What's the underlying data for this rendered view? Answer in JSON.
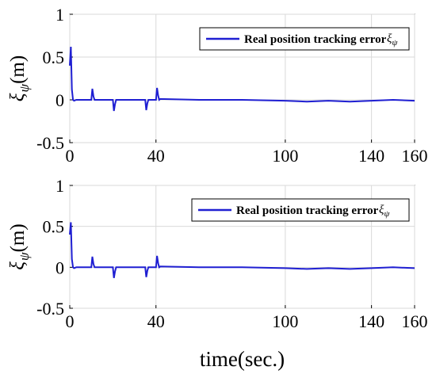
{
  "chart_data": [
    {
      "type": "line",
      "xlim": [
        0,
        160
      ],
      "ylim": [
        -0.5,
        1
      ],
      "xticks": [
        "0",
        "40",
        "100",
        "140",
        "160"
      ],
      "xtick_values": [
        0,
        40,
        100,
        140,
        160
      ],
      "yticks": [
        "1",
        "0.5",
        "0",
        "-0.5"
      ],
      "ytick_values": [
        1,
        0.5,
        0,
        -0.5
      ],
      "ylabel": "ξ",
      "ylabel_sub": "ψ",
      "ylabel_unit": "(m)",
      "xlabel": "",
      "legend": {
        "text": "Real position tracking error",
        "symbol": "ξ",
        "symbol_sub": "ψ",
        "position": "top-right"
      },
      "grid": true,
      "color": "#1f1fd2",
      "series": [
        {
          "name": "Real position tracking error ξψ",
          "x": [
            0,
            0.5,
            1,
            1.5,
            2,
            3,
            10,
            10.5,
            11,
            11.5,
            12,
            20,
            20.5,
            21,
            21.5,
            22,
            35,
            35.5,
            36,
            36.5,
            37,
            40,
            40.5,
            41,
            41.5,
            42,
            60,
            80,
            100,
            110,
            120,
            130,
            140,
            150,
            160
          ],
          "y": [
            0.4,
            0.62,
            0.12,
            0.0,
            -0.01,
            0.0,
            0.0,
            0.13,
            0.04,
            0.0,
            0.0,
            0.0,
            -0.13,
            -0.05,
            0.0,
            0.0,
            0.0,
            -0.12,
            -0.04,
            0.0,
            0.0,
            0.0,
            0.14,
            0.05,
            0.0,
            0.01,
            0.0,
            0.0,
            -0.01,
            -0.02,
            -0.01,
            -0.02,
            -0.01,
            0.0,
            -0.01
          ]
        }
      ]
    },
    {
      "type": "line",
      "xlim": [
        0,
        160
      ],
      "ylim": [
        -0.5,
        1
      ],
      "xticks": [
        "0",
        "40",
        "100",
        "140",
        "160"
      ],
      "xtick_values": [
        0,
        40,
        100,
        140,
        160
      ],
      "yticks": [
        "1",
        "0.5",
        "0",
        "-0.5"
      ],
      "ytick_values": [
        1,
        0.5,
        0,
        -0.5
      ],
      "ylabel": "ξ",
      "ylabel_sub": "ψ",
      "ylabel_unit": "(m)",
      "xlabel": "time(sec.)",
      "legend": {
        "text": "Real position tracking error",
        "symbol": "ξ",
        "symbol_sub": "ψ",
        "position": "top-right"
      },
      "grid": true,
      "color": "#1f1fd2",
      "series": [
        {
          "name": "Real position tracking error ξψ",
          "x": [
            0,
            0.5,
            1,
            1.5,
            2,
            3,
            10,
            10.5,
            11,
            11.5,
            12,
            20,
            20.5,
            21,
            21.5,
            22,
            35,
            35.5,
            36,
            36.5,
            37,
            40,
            40.5,
            41,
            41.5,
            42,
            60,
            80,
            100,
            110,
            120,
            130,
            140,
            150,
            160
          ],
          "y": [
            0.4,
            0.55,
            0.1,
            0.0,
            -0.01,
            0.0,
            0.0,
            0.13,
            0.04,
            0.0,
            0.0,
            0.0,
            -0.13,
            -0.05,
            0.0,
            0.0,
            0.0,
            -0.12,
            -0.04,
            0.0,
            0.0,
            0.0,
            0.14,
            0.05,
            0.0,
            0.01,
            0.0,
            0.0,
            -0.01,
            -0.02,
            -0.01,
            -0.02,
            -0.01,
            0.0,
            -0.01
          ]
        }
      ]
    }
  ]
}
